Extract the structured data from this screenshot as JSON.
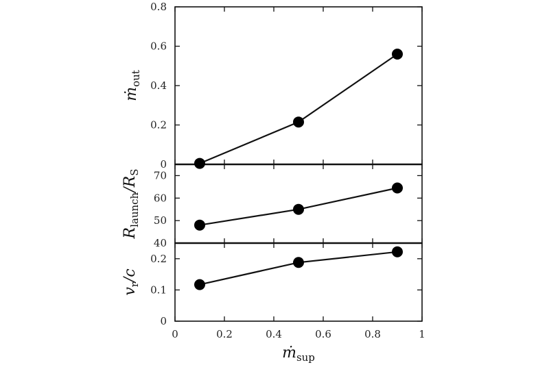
{
  "chart_data": [
    {
      "type": "line",
      "panel": "top",
      "ylabel": {
        "base": "ṁ",
        "sub": "out"
      },
      "xlim": [
        0,
        1
      ],
      "ylim": [
        0,
        0.8
      ],
      "yticks": [
        "0",
        "0.2",
        "0.4",
        "0.6",
        "0.8"
      ],
      "x": [
        0.1,
        0.5,
        0.9
      ],
      "y": [
        0.005,
        0.215,
        0.56
      ],
      "marker": "filled-circle",
      "grid": false
    },
    {
      "type": "line",
      "panel": "middle",
      "ylabel": {
        "base": "R",
        "sub": "launch",
        "slash": "/",
        "base2": "R",
        "sub2": "S"
      },
      "xlim": [
        0,
        1
      ],
      "ylim": [
        40,
        75
      ],
      "yticks": [
        "40",
        "50",
        "60",
        "70"
      ],
      "x": [
        0.1,
        0.5,
        0.9
      ],
      "y": [
        48,
        55,
        64.5
      ],
      "marker": "filled-circle",
      "grid": false
    },
    {
      "type": "line",
      "panel": "bottom",
      "ylabel": {
        "base": "v",
        "sub": "r",
        "slash": "/",
        "base2": "c"
      },
      "xlim": [
        0,
        1
      ],
      "ylim": [
        0,
        0.25
      ],
      "yticks": [
        "0",
        "0.1",
        "0.2"
      ],
      "xticks": [
        "0",
        "0.2",
        "0.4",
        "0.6",
        "0.8",
        "1"
      ],
      "xlabel": {
        "base": "ṁ",
        "sub": "sup"
      },
      "x": [
        0.1,
        0.5,
        0.9
      ],
      "y": [
        0.117,
        0.188,
        0.222
      ],
      "marker": "filled-circle",
      "grid": false
    }
  ]
}
